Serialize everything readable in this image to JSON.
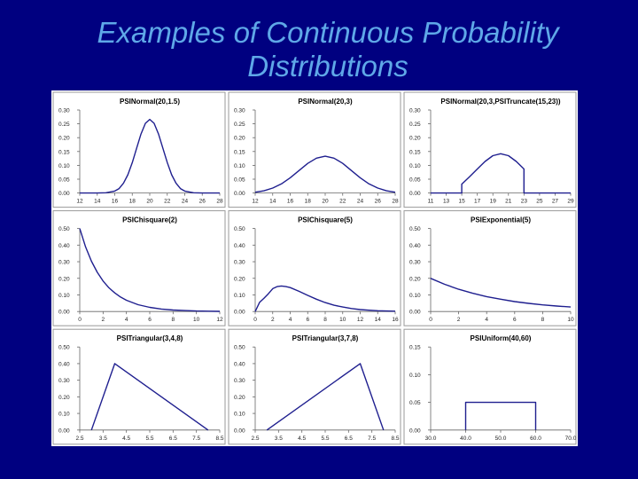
{
  "slide": {
    "title_line1": "Examples of Continuous Probability",
    "title_line2": "Distributions"
  },
  "chart_data": [
    {
      "type": "line",
      "title": "PSINormal(20,1.5)",
      "xlim": [
        12,
        28
      ],
      "ylim": [
        0,
        0.3
      ],
      "xticks": [
        "12",
        "14",
        "16",
        "18",
        "20",
        "22",
        "24",
        "26",
        "28"
      ],
      "yticks": [
        "0.00",
        "0.05",
        "0.10",
        "0.15",
        "0.20",
        "0.25",
        "0.30"
      ],
      "x": [
        12,
        14,
        15,
        16,
        16.5,
        17,
        17.5,
        18,
        18.5,
        19,
        19.5,
        20,
        20.5,
        21,
        21.5,
        22,
        22.5,
        23,
        23.5,
        24,
        25,
        26,
        28
      ],
      "y": [
        0,
        0,
        0.001,
        0.007,
        0.016,
        0.036,
        0.066,
        0.11,
        0.162,
        0.213,
        0.252,
        0.266,
        0.252,
        0.213,
        0.162,
        0.11,
        0.066,
        0.036,
        0.016,
        0.007,
        0.001,
        0,
        0
      ]
    },
    {
      "type": "line",
      "title": "PSINormal(20,3)",
      "xlim": [
        12,
        28
      ],
      "ylim": [
        0,
        0.3
      ],
      "xticks": [
        "12",
        "14",
        "16",
        "18",
        "20",
        "22",
        "24",
        "26",
        "28"
      ],
      "yticks": [
        "0.00",
        "0.05",
        "0.10",
        "0.15",
        "0.20",
        "0.25",
        "0.30"
      ],
      "x": [
        12,
        13,
        14,
        15,
        16,
        17,
        18,
        19,
        20,
        21,
        22,
        23,
        24,
        25,
        26,
        27,
        28
      ],
      "y": [
        0.003,
        0.008,
        0.018,
        0.033,
        0.055,
        0.081,
        0.107,
        0.126,
        0.133,
        0.126,
        0.107,
        0.081,
        0.055,
        0.033,
        0.018,
        0.008,
        0.003
      ]
    },
    {
      "type": "line",
      "title": "PSINormal(20,3,PSITruncate(15,23))",
      "xlim": [
        11,
        29
      ],
      "ylim": [
        0,
        0.3
      ],
      "xticks": [
        "11",
        "13",
        "15",
        "17",
        "19",
        "21",
        "23",
        "25",
        "27",
        "29"
      ],
      "yticks": [
        "0.00",
        "0.05",
        "0.10",
        "0.15",
        "0.20",
        "0.25",
        "0.30"
      ],
      "x": [
        11,
        15,
        15,
        16,
        17,
        18,
        19,
        20,
        21,
        22,
        23,
        23,
        29
      ],
      "y": [
        0,
        0,
        0.032,
        0.059,
        0.087,
        0.114,
        0.135,
        0.142,
        0.135,
        0.114,
        0.087,
        0,
        0
      ]
    },
    {
      "type": "line",
      "title": "PSIChisquare(2)",
      "xlim": [
        0,
        12
      ],
      "ylim": [
        0,
        0.5
      ],
      "xticks": [
        "0",
        "2",
        "4",
        "6",
        "8",
        "10",
        "12"
      ],
      "yticks": [
        "0.00",
        "0.10",
        "0.20",
        "0.30",
        "0.40",
        "0.50"
      ],
      "x": [
        0,
        0.5,
        1,
        1.5,
        2,
        2.5,
        3,
        3.5,
        4,
        5,
        6,
        7,
        8,
        9,
        10,
        11,
        12
      ],
      "y": [
        0.5,
        0.389,
        0.303,
        0.236,
        0.184,
        0.143,
        0.112,
        0.087,
        0.068,
        0.041,
        0.025,
        0.015,
        0.009,
        0.006,
        0.003,
        0.002,
        0.001
      ]
    },
    {
      "type": "line",
      "title": "PSIChisquare(5)",
      "xlim": [
        0,
        16
      ],
      "ylim": [
        0,
        0.5
      ],
      "xticks": [
        "0",
        "2",
        "4",
        "6",
        "8",
        "10",
        "12",
        "14",
        "16"
      ],
      "yticks": [
        "0.00",
        "0.10",
        "0.20",
        "0.30",
        "0.40",
        "0.50"
      ],
      "x": [
        0,
        0.5,
        1,
        1.5,
        2,
        2.5,
        3,
        3.5,
        4,
        5,
        6,
        7,
        8,
        9,
        10,
        11,
        12,
        13,
        14,
        15,
        16
      ],
      "y": [
        0,
        0.055,
        0.08,
        0.107,
        0.138,
        0.15,
        0.154,
        0.15,
        0.144,
        0.122,
        0.097,
        0.074,
        0.054,
        0.038,
        0.027,
        0.018,
        0.012,
        0.008,
        0.005,
        0.003,
        0.002
      ]
    },
    {
      "type": "line",
      "title": "PSIExponential(5)",
      "xlim": [
        0,
        10
      ],
      "ylim": [
        0,
        0.5
      ],
      "xticks": [
        "0",
        "2",
        "4",
        "6",
        "8",
        "10"
      ],
      "yticks": [
        "0.00",
        "0.10",
        "0.20",
        "0.30",
        "0.40",
        "0.50"
      ],
      "x": [
        0,
        1,
        2,
        3,
        4,
        5,
        6,
        7,
        8,
        9,
        10
      ],
      "y": [
        0.2,
        0.164,
        0.134,
        0.11,
        0.09,
        0.074,
        0.06,
        0.049,
        0.04,
        0.033,
        0.027
      ]
    },
    {
      "type": "line",
      "title": "PSITriangular(3,4,8)",
      "xlim": [
        2.5,
        8.5
      ],
      "ylim": [
        0,
        0.5
      ],
      "xticks": [
        "2.5",
        "3.5",
        "4.5",
        "5.5",
        "6.5",
        "7.5",
        "8.5"
      ],
      "yticks": [
        "0.00",
        "0.10",
        "0.20",
        "0.30",
        "0.40",
        "0.50"
      ],
      "x": [
        3,
        4,
        8
      ],
      "y": [
        0,
        0.4,
        0
      ]
    },
    {
      "type": "line",
      "title": "PSITriangular(3,7,8)",
      "xlim": [
        2.5,
        8.5
      ],
      "ylim": [
        0,
        0.5
      ],
      "xticks": [
        "2.5",
        "3.5",
        "4.5",
        "5.5",
        "6.5",
        "7.5",
        "8.5"
      ],
      "yticks": [
        "0.00",
        "0.10",
        "0.20",
        "0.30",
        "0.40",
        "0.50"
      ],
      "x": [
        3,
        7,
        8
      ],
      "y": [
        0,
        0.4,
        0
      ]
    },
    {
      "type": "line",
      "title": "PSIUniform(40,60)",
      "xlim": [
        30,
        70
      ],
      "ylim": [
        0,
        0.15
      ],
      "xticks": [
        "30.0",
        "40.0",
        "50.0",
        "60.0",
        "70.0"
      ],
      "yticks": [
        "0.00",
        "0.05",
        "0.10",
        "0.15"
      ],
      "x": [
        40,
        40,
        60,
        60
      ],
      "y": [
        0,
        0.05,
        0.05,
        0
      ]
    }
  ]
}
